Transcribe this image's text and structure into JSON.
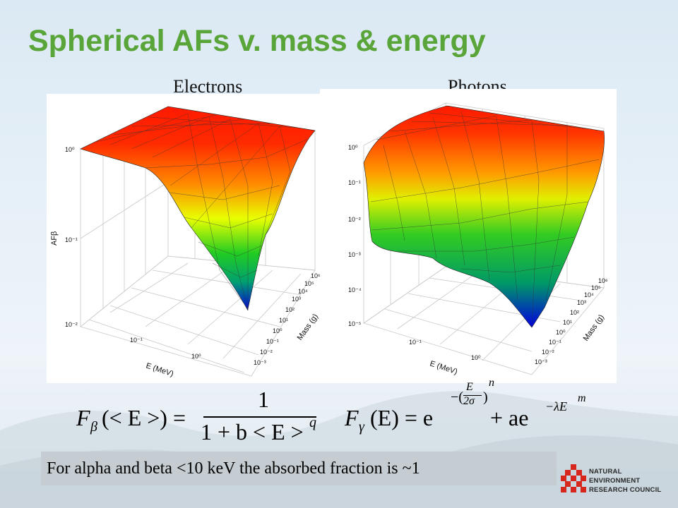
{
  "title": "Spherical AFs v. mass & energy",
  "panels": {
    "left_label": "Electrons",
    "right_label": "Photons"
  },
  "electron_plot": {
    "z_label": "AFβ",
    "x_label": "E (MeV)",
    "y_label": "Mass (g)",
    "z_ticks": [
      "10⁰",
      "10⁻¹",
      "10⁻²"
    ],
    "x_ticks": [
      "10⁻¹",
      "10⁰"
    ],
    "y_ticks": [
      "10⁻³",
      "10⁻²",
      "10⁻¹",
      "10⁰",
      "10¹",
      "10²",
      "10³",
      "10⁴",
      "10⁵",
      "10⁶"
    ]
  },
  "photon_plot": {
    "x_label": "E (MeV)",
    "y_label": "Mass (g)",
    "z_ticks": [
      "10⁰",
      "10⁻¹",
      "10⁻²",
      "10⁻³",
      "10⁻⁴",
      "10⁻⁵"
    ],
    "x_ticks": [
      "10⁻¹",
      "10⁰"
    ],
    "y_ticks": [
      "10⁻³",
      "10⁻²",
      "10⁻¹",
      "10⁰",
      "10¹",
      "10²",
      "10³",
      "10⁴",
      "10⁵",
      "10⁶"
    ]
  },
  "equations": {
    "beta": {
      "lhs": "F",
      "sub": "β",
      "arg": "(< E >) =",
      "num": "1",
      "den": "1 + b < E >",
      "den_exp": "q"
    },
    "gamma": {
      "lhs": "F",
      "sub": "γ",
      "arg": "(E) = e",
      "exp_top": "E",
      "exp_bot": "2σ",
      "exp_n": "n",
      "rest": "+ ae",
      "rest_exp": "−λE",
      "rest_m": "m"
    }
  },
  "caption": "For alpha and beta <10 keV the absorbed fraction is ~1",
  "logo": {
    "line1": "NATURAL",
    "line2": "ENVIRONMENT",
    "line3": "RESEARCH COUNCIL"
  },
  "colors": {
    "title": "#5aa53a",
    "logo_red": "#d7261e"
  }
}
